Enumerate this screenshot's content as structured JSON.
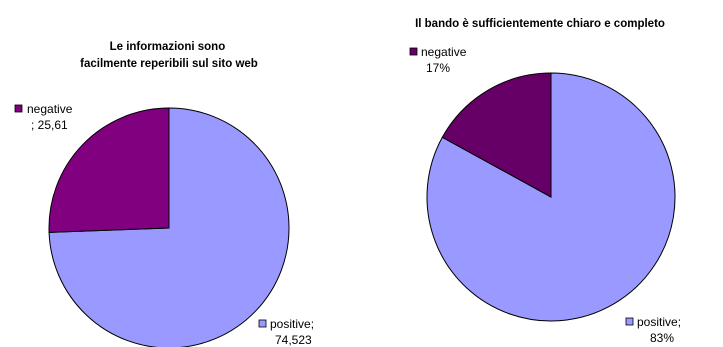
{
  "chart_data": [
    {
      "type": "pie",
      "title_lines": [
        "Le informazioni sono",
        "facilmente reperibili sul sito web"
      ],
      "slices": [
        {
          "name": "positive",
          "value": 74.523,
          "label_lines": [
            "positive;",
            "74,523"
          ],
          "color": "#9999ff"
        },
        {
          "name": "negative",
          "value": 25.61,
          "label_lines": [
            "negative",
            "; 25,61"
          ],
          "color": "#800080"
        }
      ]
    },
    {
      "type": "pie",
      "title_lines": [
        "Il bando è sufficientemente chiaro e completo"
      ],
      "slices": [
        {
          "name": "positive",
          "value": 83,
          "label_lines": [
            "positive;",
            "83%"
          ],
          "color": "#9999ff"
        },
        {
          "name": "negative",
          "value": 17,
          "label_lines": [
            "negative",
            "17%"
          ],
          "color": "#660066"
        }
      ]
    }
  ]
}
